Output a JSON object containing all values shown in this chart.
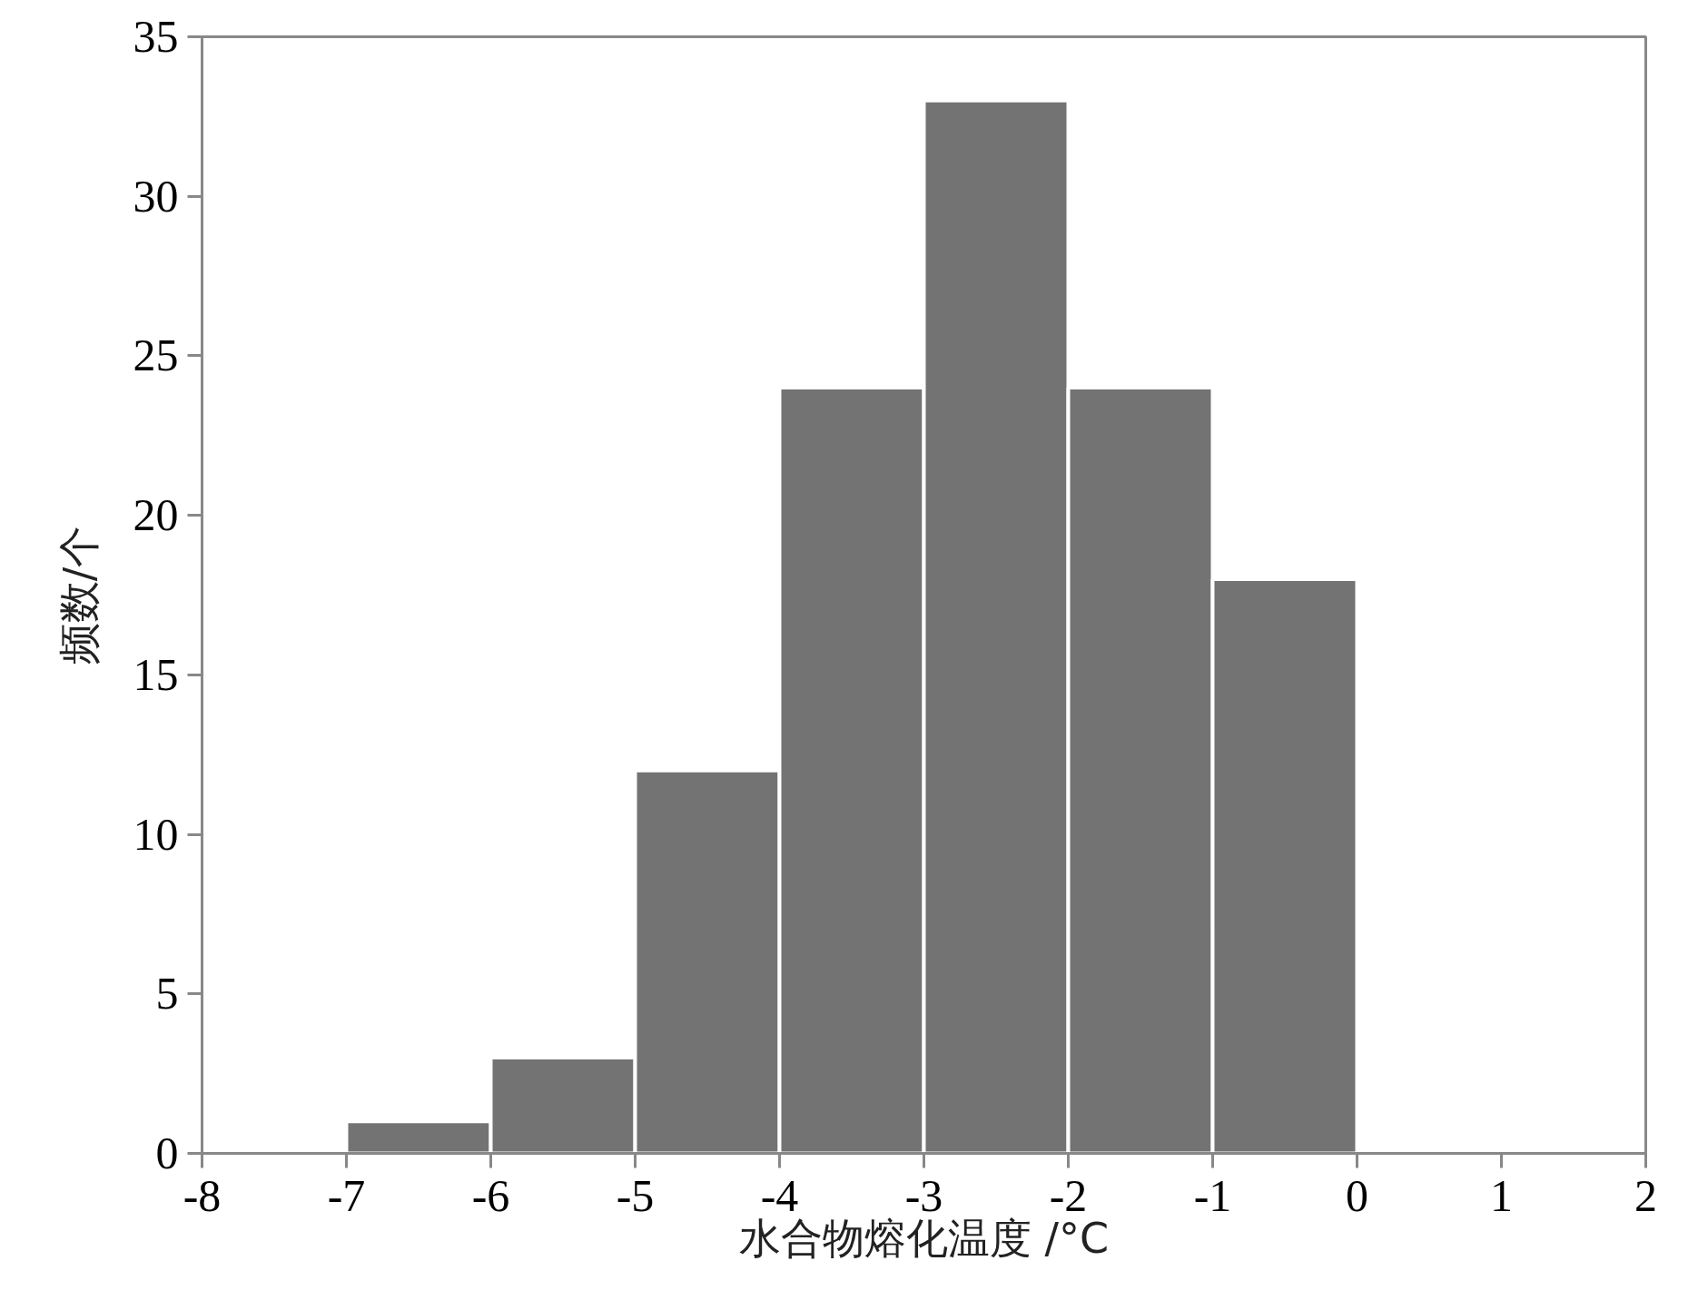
{
  "chart_data": {
    "type": "histogram",
    "bins": [
      -7,
      -6,
      -5,
      -4,
      -3,
      -2,
      -1,
      0
    ],
    "values": [
      1,
      3,
      12,
      24,
      33,
      24,
      18
    ],
    "color": "#737373",
    "xlabel": "水合物熔化温度 /°C",
    "ylabel": "频数/个",
    "xlim": [
      -8,
      2
    ],
    "xticks": [
      -8,
      -7,
      -6,
      -5,
      -4,
      -3,
      -2,
      -1,
      0,
      1,
      2
    ],
    "ylim": [
      0,
      35
    ],
    "yticks": [
      0,
      5,
      10,
      15,
      20,
      25,
      30,
      35
    ],
    "grid": false
  }
}
